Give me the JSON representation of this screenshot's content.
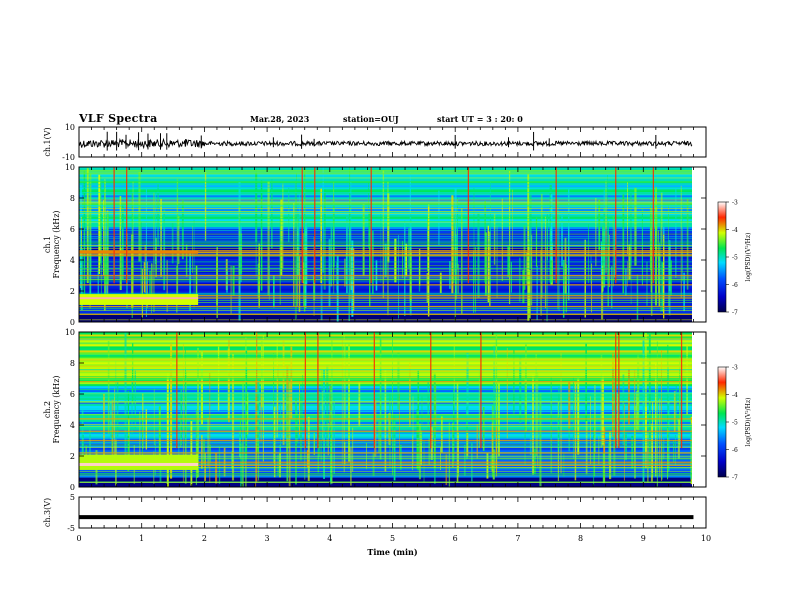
{
  "header": {
    "title": "VLF Spectra",
    "date": "Mar.28, 2023",
    "station": "station=OUJ",
    "start_ut": "start UT =  3 : 20: 0"
  },
  "chart_data": [
    {
      "type": "line",
      "title": "",
      "ylabel": "ch.1(V)",
      "ylim": [
        -10,
        10
      ],
      "yticks": [
        "10",
        "-10"
      ],
      "xlim": [
        0,
        10
      ],
      "description_series": "waveform",
      "x": [
        0,
        1,
        2,
        3,
        4,
        5,
        6,
        7,
        8,
        9,
        9.8
      ],
      "y": [
        0,
        0,
        0,
        0,
        0,
        0,
        0,
        0,
        0,
        0,
        0
      ],
      "color": "#000000"
    },
    {
      "type": "heatmap",
      "title": "",
      "ylabel": "ch.1\nFrequency (kHz)",
      "ylabel_line1": "ch.1",
      "ylabel_line2": "Frequency (kHz)",
      "ylim": [
        0,
        10
      ],
      "yticks": [
        "0",
        "2",
        "4",
        "6",
        "8",
        "10"
      ],
      "xlim": [
        0,
        9.8
      ],
      "colorbar": {
        "label": "log(PSD)(V²/Hz)",
        "range": [
          -7,
          -3
        ],
        "ticks": [
          "-3",
          "-4",
          "-5",
          "-6",
          "-7"
        ],
        "colors": [
          "#00004d",
          "#0000ff",
          "#00ffff",
          "#00ff00",
          "#ffff00",
          "#ff0000",
          "#ffffff"
        ]
      },
      "bands_khz": [
        0.5,
        1.0,
        1.55,
        1.7,
        2.4,
        3.0,
        4.3,
        4.5,
        4.6
      ]
    },
    {
      "type": "heatmap",
      "title": "",
      "ylabel": "ch.2\nFrequency (kHz)",
      "ylabel_line1": "ch.2",
      "ylabel_line2": "Frequency (kHz)",
      "ylim": [
        0,
        10
      ],
      "yticks": [
        "0",
        "2",
        "4",
        "6",
        "8",
        "10"
      ],
      "xlim": [
        0,
        9.8
      ],
      "colorbar": {
        "label": "log(PSD)(V²/Hz)",
        "range": [
          -7,
          -3
        ],
        "ticks": [
          "-3",
          "-4",
          "-5",
          "-6",
          "-7"
        ],
        "colors": [
          "#00004d",
          "#0000ff",
          "#00ffff",
          "#00ff00",
          "#ffff00",
          "#ff0000",
          "#ffffff"
        ]
      },
      "bands_khz": [
        1.4,
        1.6,
        2.2,
        3.0,
        3.6,
        4.4,
        6.8,
        7.8,
        8.2
      ]
    },
    {
      "type": "line",
      "title": "",
      "ylabel": "ch.3(V)",
      "ylim": [
        -5,
        5
      ],
      "yticks": [
        "5",
        "-5"
      ],
      "xlim": [
        0,
        10
      ],
      "x": [
        0,
        9.8
      ],
      "y": [
        -1.5,
        -1.5
      ],
      "color": "#000000"
    }
  ],
  "xaxis": {
    "label": "Time (min)",
    "ticks": [
      "0",
      "1",
      "2",
      "3",
      "4",
      "5",
      "6",
      "7",
      "8",
      "9",
      "10"
    ]
  }
}
